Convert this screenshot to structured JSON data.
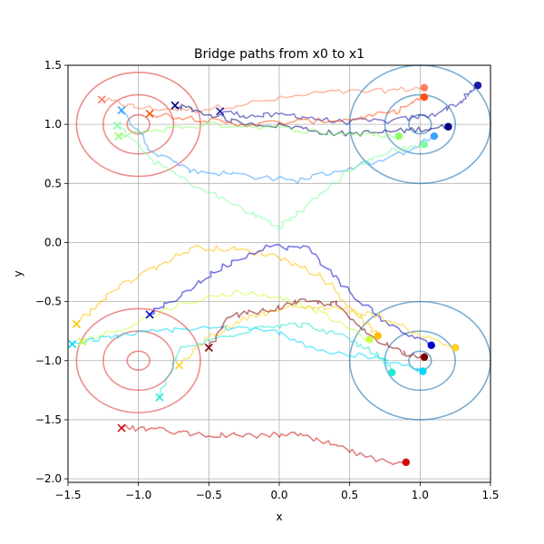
{
  "chart_data": {
    "type": "line",
    "title": "Bridge paths from x0 to x1",
    "xlabel": "x",
    "ylabel": "y",
    "xlim": [
      -1.5,
      1.5
    ],
    "ylim": [
      -2.03,
      1.5
    ],
    "xticks": [
      -1.5,
      -1.0,
      -0.5,
      0.0,
      0.5,
      1.0,
      1.5
    ],
    "xtick_labels": [
      "−1.5",
      "−1.0",
      "−0.5",
      "0.0",
      "0.5",
      "1.0",
      "1.5"
    ],
    "yticks": [
      -2.0,
      -1.5,
      -1.0,
      -0.5,
      0.0,
      0.5,
      1.0,
      1.5
    ],
    "ytick_labels": [
      "−2.0",
      "−1.5",
      "−1.0",
      "−0.5",
      "0.0",
      "0.5",
      "1.0",
      "1.5"
    ],
    "grid": true,
    "legend": false,
    "contours": [
      {
        "center": [
          -1.0,
          1.0
        ],
        "radii": [
          0.08,
          0.25,
          0.44
        ],
        "color": "#e0443e"
      },
      {
        "center": [
          -1.0,
          -1.0
        ],
        "radii": [
          0.08,
          0.25,
          0.44
        ],
        "color": "#e0443e"
      },
      {
        "center": [
          1.0,
          1.0
        ],
        "radii": [
          0.08,
          0.25,
          0.5
        ],
        "color": "#1f77b4"
      },
      {
        "center": [
          1.0,
          -1.0
        ],
        "radii": [
          0.08,
          0.25,
          0.5
        ],
        "color": "#1f77b4"
      }
    ],
    "paths": [
      {
        "color": "#ff7f5e",
        "start": [
          -1.26,
          1.21
        ],
        "end": [
          1.03,
          1.31
        ],
        "mid": [
          [
            -1.0,
            1.14
          ],
          [
            -0.6,
            1.12
          ],
          [
            -0.2,
            1.18
          ],
          [
            0.3,
            1.27
          ],
          [
            0.7,
            1.28
          ]
        ]
      },
      {
        "color": "#1a1aa8",
        "start": [
          -0.42,
          1.11
        ],
        "end": [
          1.41,
          1.33
        ],
        "mid": [
          [
            -0.2,
            1.07
          ],
          [
            0.1,
            1.08
          ],
          [
            0.4,
            1.02
          ],
          [
            0.8,
            1.03
          ],
          [
            1.1,
            1.08
          ],
          [
            1.3,
            1.2
          ]
        ]
      },
      {
        "color": "#000080",
        "start": [
          -0.74,
          1.16
        ],
        "end": [
          1.2,
          0.98
        ],
        "mid": [
          [
            -0.6,
            1.12
          ],
          [
            -0.3,
            1.02
          ],
          [
            0.1,
            0.98
          ],
          [
            0.4,
            0.92
          ],
          [
            0.7,
            0.93
          ],
          [
            1.0,
            0.96
          ]
        ]
      },
      {
        "color": "#ff5010",
        "start": [
          -0.92,
          1.09
        ],
        "end": [
          1.03,
          1.23
        ],
        "mid": [
          [
            -0.6,
            1.05
          ],
          [
            -0.3,
            1.0
          ],
          [
            0.1,
            1.02
          ],
          [
            0.5,
            1.04
          ],
          [
            0.8,
            1.1
          ]
        ]
      },
      {
        "color": "#8cff66",
        "start": [
          -1.14,
          0.9
        ],
        "end": [
          0.85,
          0.9
        ],
        "mid": [
          [
            -0.9,
            0.95
          ],
          [
            -0.5,
            1.0
          ],
          [
            -0.1,
            0.98
          ],
          [
            0.3,
            0.93
          ],
          [
            0.6,
            0.92
          ]
        ]
      },
      {
        "color": "#3aa0ff",
        "start": [
          -1.12,
          1.12
        ],
        "end": [
          1.1,
          0.9
        ],
        "mid": [
          [
            -0.9,
            0.78
          ],
          [
            -0.6,
            0.6
          ],
          [
            -0.3,
            0.58
          ],
          [
            0.1,
            0.52
          ],
          [
            0.4,
            0.6
          ],
          [
            0.8,
            0.72
          ]
        ]
      },
      {
        "color": "#7cffa0",
        "start": [
          -1.15,
          0.99
        ],
        "end": [
          1.03,
          0.83
        ],
        "mid": [
          [
            -0.9,
            0.7
          ],
          [
            -0.6,
            0.48
          ],
          [
            -0.2,
            0.25
          ],
          [
            0.0,
            0.13
          ],
          [
            0.2,
            0.3
          ],
          [
            0.5,
            0.62
          ],
          [
            0.8,
            0.78
          ]
        ]
      },
      {
        "color": "#ffc000",
        "start": [
          -1.44,
          -0.69
        ],
        "end": [
          0.7,
          -0.79
        ],
        "mid": [
          [
            -1.2,
            -0.42
          ],
          [
            -0.9,
            -0.22
          ],
          [
            -0.6,
            -0.04
          ],
          [
            -0.3,
            -0.06
          ],
          [
            0.0,
            -0.12
          ],
          [
            0.3,
            -0.28
          ],
          [
            0.55,
            -0.6
          ]
        ]
      },
      {
        "color": "#0000cc",
        "start": [
          -0.92,
          -0.61
        ],
        "end": [
          1.08,
          -0.87
        ],
        "mid": [
          [
            -0.7,
            -0.45
          ],
          [
            -0.4,
            -0.2
          ],
          [
            -0.1,
            -0.03
          ],
          [
            0.2,
            -0.05
          ],
          [
            0.5,
            -0.42
          ],
          [
            0.8,
            -0.72
          ]
        ]
      },
      {
        "color": "#c8ff40",
        "start": [
          -1.4,
          -0.84
        ],
        "end": [
          0.64,
          -0.82
        ],
        "mid": [
          [
            -1.1,
            -0.72
          ],
          [
            -0.7,
            -0.52
          ],
          [
            -0.3,
            -0.42
          ],
          [
            0.0,
            -0.46
          ],
          [
            0.3,
            -0.6
          ]
        ]
      },
      {
        "color": "#ffd020",
        "start": [
          -0.71,
          -1.04
        ],
        "end": [
          1.25,
          -0.89
        ],
        "mid": [
          [
            -0.5,
            -0.8
          ],
          [
            -0.2,
            -0.62
          ],
          [
            0.1,
            -0.55
          ],
          [
            0.4,
            -0.55
          ],
          [
            0.7,
            -0.62
          ],
          [
            1.0,
            -0.78
          ]
        ]
      },
      {
        "color": "#00d8ff",
        "start": [
          -1.47,
          -0.86
        ],
        "end": [
          1.02,
          -1.09
        ],
        "mid": [
          [
            -1.2,
            -0.8
          ],
          [
            -0.8,
            -0.74
          ],
          [
            -0.4,
            -0.72
          ],
          [
            0.0,
            -0.76
          ],
          [
            0.3,
            -0.92
          ],
          [
            0.7,
            -0.98
          ]
        ]
      },
      {
        "color": "#20e8d0",
        "start": [
          -0.85,
          -1.31
        ],
        "end": [
          0.8,
          -1.1
        ],
        "mid": [
          [
            -0.7,
            -0.9
          ],
          [
            -0.4,
            -0.8
          ],
          [
            -0.1,
            -0.7
          ],
          [
            0.2,
            -0.7
          ],
          [
            0.5,
            -0.82
          ],
          [
            0.7,
            -0.95
          ]
        ]
      },
      {
        "color": "#800000",
        "start": [
          -0.5,
          -0.89
        ],
        "end": [
          1.03,
          -0.97
        ],
        "mid": [
          [
            -0.35,
            -0.62
          ],
          [
            -0.1,
            -0.58
          ],
          [
            0.15,
            -0.5
          ],
          [
            0.4,
            -0.52
          ],
          [
            0.6,
            -0.75
          ],
          [
            0.85,
            -0.92
          ]
        ]
      },
      {
        "color": "#cc1010",
        "start": [
          -1.12,
          -1.57
        ],
        "end": [
          0.9,
          -1.86
        ],
        "mid": [
          [
            -0.9,
            -1.58
          ],
          [
            -0.6,
            -1.62
          ],
          [
            -0.2,
            -1.64
          ],
          [
            0.1,
            -1.62
          ],
          [
            0.4,
            -1.72
          ],
          [
            0.7,
            -1.85
          ]
        ]
      }
    ]
  }
}
